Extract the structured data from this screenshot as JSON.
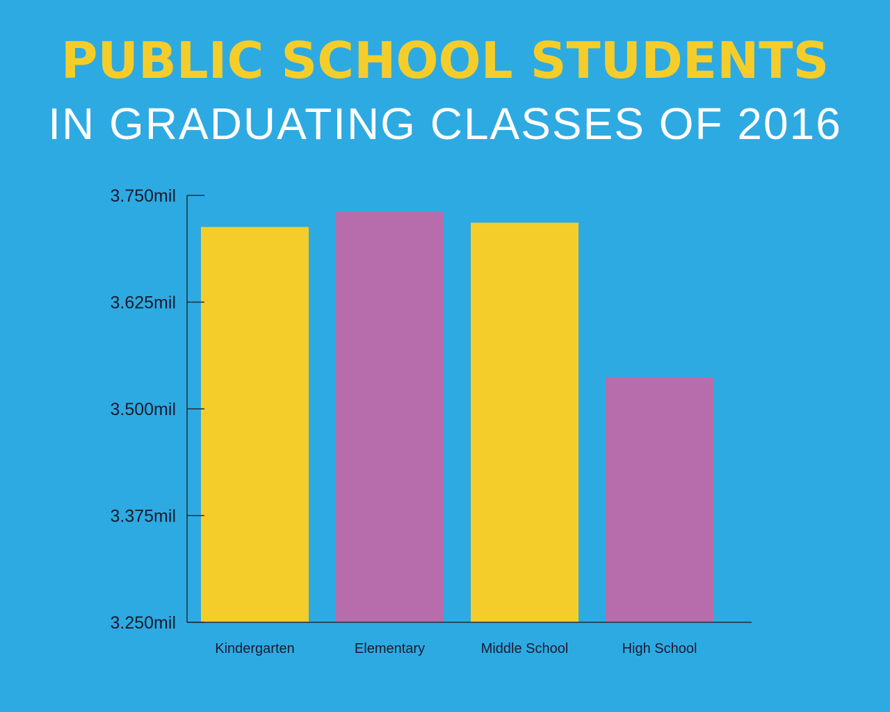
{
  "header": {
    "title": "PUBLIC SCHOOL STUDENTS",
    "subtitle": "IN GRADUATING CLASSES OF 2016"
  },
  "colors": {
    "background": "#2eaae2",
    "title": "#f5cd2a",
    "subtitle": "#ffffff",
    "yellow_bar": "#f5cd2a",
    "purple_bar": "#b76dab",
    "axis": "#1e2d3a",
    "text": "#1a1a2e"
  },
  "chart_data": {
    "type": "bar",
    "categories": [
      "Kindergarten",
      "Elementary",
      "Middle School",
      "High School"
    ],
    "values": [
      3.713,
      3.731,
      3.718,
      3.537
    ],
    "bar_colors": [
      "#f5cd2a",
      "#b76dab",
      "#f5cd2a",
      "#b76dab"
    ],
    "ylim": [
      3.25,
      3.75
    ],
    "yticks": [
      3.25,
      3.375,
      3.5,
      3.625,
      3.75
    ],
    "ytick_labels": [
      "3.250mil",
      "3.375mil",
      "3.500mil",
      "3.625mil",
      "3.750mil"
    ],
    "grid": false,
    "legend": false
  }
}
